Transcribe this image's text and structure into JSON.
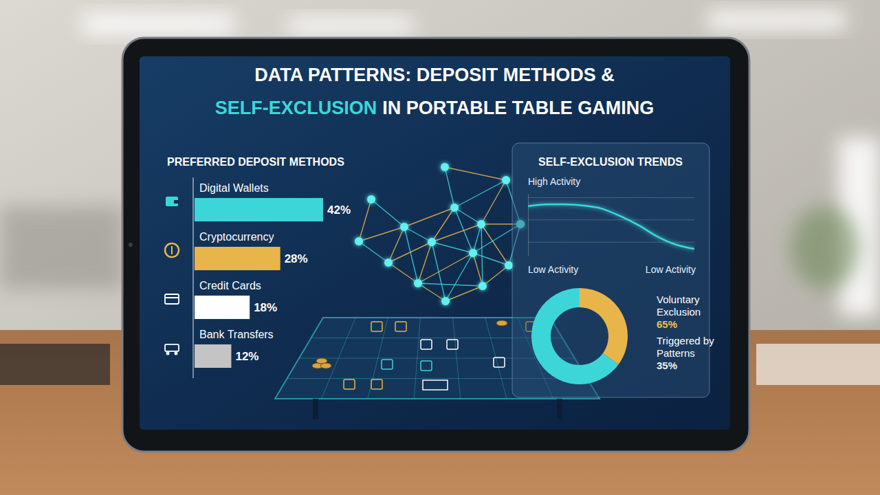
{
  "page_title": {
    "line1": "DATA PATTERNS: DEPOSIT METHODS &",
    "highlight": "SELF-EXCLUSION",
    "line2": "IN PORTABLE TABLE GAMING"
  },
  "chart_data": [
    {
      "type": "bar",
      "title": "PREFERRED DEPOSIT METHODS",
      "orientation": "horizontal",
      "categories": [
        "Digital Wallets",
        "Cryptocurrency",
        "Credit Cards",
        "Bank Transfers"
      ],
      "values": [
        42,
        28,
        18,
        12
      ],
      "value_labels": [
        "42%",
        "28%",
        "18%",
        "12%"
      ],
      "colors": [
        "#3dd6d8",
        "#e8b54a",
        "#ffffff",
        "#c4c4c4"
      ],
      "data_labels": true,
      "tick_labels": false
    },
    {
      "type": "line",
      "title": "SELF-EXCLUSION TRENDS",
      "categories": [
        null,
        null,
        null,
        null,
        null,
        null,
        null,
        null,
        null,
        null
      ],
      "values": [
        80,
        83,
        83,
        81,
        76,
        64,
        49,
        31,
        18,
        11
      ],
      "color": "#3dd6d8",
      "ylim": [
        0,
        100
      ],
      "yticks": [
        22,
        58,
        94
      ],
      "grid": true,
      "tick_labels": false,
      "annotations": [
        "High Activity",
        "Low Activity",
        "Low Activity"
      ]
    },
    {
      "type": "donut",
      "categories": [
        "Voluntary Exclusion",
        "Triggered by Patterns"
      ],
      "values": [
        65,
        35
      ],
      "value_labels": [
        "65%",
        "35%"
      ],
      "colors": [
        "#3dd6d8",
        "#e8b54a"
      ],
      "data_labels": true
    }
  ]
}
